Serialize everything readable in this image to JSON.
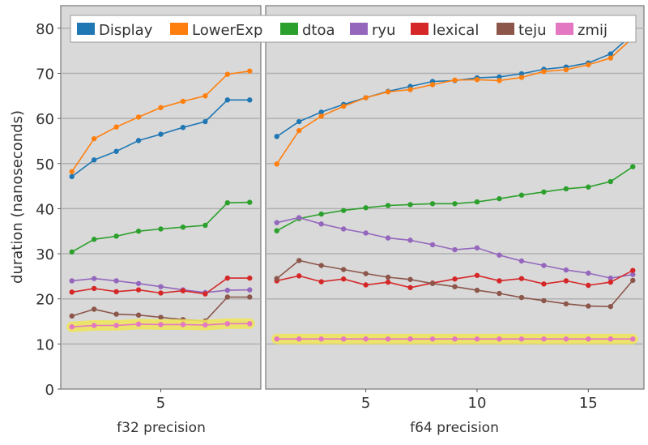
{
  "chart_data": [
    {
      "type": "line",
      "title": "",
      "xlabel": "f32 precision",
      "ylabel": "duration (nanoseconds)",
      "xlim": [
        0.5,
        9.5
      ],
      "ylim": [
        0,
        85
      ],
      "xticks": [
        5
      ],
      "yticks": [
        0,
        10,
        20,
        30,
        40,
        50,
        60,
        70,
        80
      ],
      "grid": "horizontal",
      "x": [
        1,
        2,
        3,
        4,
        5,
        6,
        7,
        8,
        9
      ],
      "series": [
        {
          "name": "Display",
          "color": "#1f77b4",
          "values": [
            47.1,
            50.8,
            52.7,
            55.1,
            56.5,
            58.0,
            59.3,
            64.1,
            64.1
          ]
        },
        {
          "name": "LowerExp",
          "color": "#ff7f0e",
          "values": [
            48.2,
            55.5,
            58.1,
            60.3,
            62.4,
            63.8,
            65.0,
            69.8,
            70.5
          ]
        },
        {
          "name": "dtoa",
          "color": "#2ca02c",
          "values": [
            30.4,
            33.2,
            33.9,
            35.0,
            35.5,
            35.9,
            36.3,
            41.3,
            41.4
          ]
        },
        {
          "name": "ryu",
          "color": "#9467bd",
          "values": [
            24.0,
            24.5,
            24.0,
            23.4,
            22.7,
            22.0,
            21.4,
            21.9,
            22.0
          ]
        },
        {
          "name": "lexical",
          "color": "#d62728",
          "values": [
            21.5,
            22.3,
            21.6,
            22.0,
            21.3,
            21.8,
            21.1,
            24.6,
            24.6
          ]
        },
        {
          "name": "teju",
          "color": "#8c564b",
          "values": [
            16.2,
            17.7,
            16.6,
            16.4,
            15.9,
            15.4,
            15.1,
            20.4,
            20.4
          ]
        },
        {
          "name": "zmij",
          "color": "#e377c2",
          "highlight": "#ece35e",
          "values": [
            13.8,
            14.1,
            14.1,
            14.4,
            14.3,
            14.3,
            14.2,
            14.5,
            14.5
          ]
        }
      ]
    },
    {
      "type": "line",
      "title": "",
      "xlabel": "f64 precision",
      "ylabel": "",
      "xlim": [
        0.5,
        17.5
      ],
      "ylim": [
        0,
        85
      ],
      "xticks": [
        5,
        10,
        15
      ],
      "grid": "horizontal",
      "x": [
        1,
        2,
        3,
        4,
        5,
        6,
        7,
        8,
        9,
        10,
        11,
        12,
        13,
        14,
        15,
        16,
        17
      ],
      "series": [
        {
          "name": "Display",
          "color": "#1f77b4",
          "values": [
            56.0,
            59.3,
            61.4,
            63.1,
            64.6,
            66.0,
            67.1,
            68.2,
            68.4,
            69.0,
            69.2,
            69.9,
            70.9,
            71.4,
            72.3,
            74.3,
            78.8
          ]
        },
        {
          "name": "LowerExp",
          "color": "#ff7f0e",
          "values": [
            49.9,
            57.3,
            60.5,
            62.7,
            64.6,
            65.9,
            66.4,
            67.5,
            68.5,
            68.6,
            68.4,
            69.1,
            70.4,
            70.8,
            71.9,
            73.4,
            77.9
          ]
        },
        {
          "name": "dtoa",
          "color": "#2ca02c",
          "values": [
            35.1,
            37.8,
            38.8,
            39.6,
            40.2,
            40.7,
            40.9,
            41.1,
            41.1,
            41.5,
            42.2,
            43.0,
            43.7,
            44.4,
            44.8,
            46.0,
            49.3
          ]
        },
        {
          "name": "ryu",
          "color": "#9467bd",
          "values": [
            36.9,
            38.0,
            36.6,
            35.5,
            34.6,
            33.5,
            33.0,
            32.0,
            30.9,
            31.3,
            29.7,
            28.4,
            27.4,
            26.4,
            25.7,
            24.6,
            25.4
          ]
        },
        {
          "name": "lexical",
          "color": "#d62728",
          "values": [
            24.0,
            25.1,
            23.8,
            24.4,
            23.1,
            23.7,
            22.5,
            23.5,
            24.4,
            25.2,
            24.0,
            24.5,
            23.3,
            24.0,
            23.0,
            23.7,
            26.3
          ]
        },
        {
          "name": "teju",
          "color": "#8c564b",
          "values": [
            24.5,
            28.5,
            27.4,
            26.5,
            25.6,
            24.8,
            24.3,
            23.4,
            22.7,
            21.9,
            21.2,
            20.3,
            19.6,
            18.9,
            18.4,
            18.3,
            24.1
          ]
        },
        {
          "name": "zmij",
          "color": "#e377c2",
          "highlight": "#ece35e",
          "values": [
            11.1,
            11.1,
            11.1,
            11.1,
            11.1,
            11.1,
            11.1,
            11.1,
            11.1,
            11.1,
            11.1,
            11.1,
            11.1,
            11.1,
            11.1,
            11.1,
            11.1
          ]
        }
      ]
    }
  ],
  "legend": {
    "placement": "top",
    "entries": [
      "Display",
      "LowerExp",
      "dtoa",
      "ryu",
      "lexical",
      "teju",
      "zmij"
    ]
  }
}
